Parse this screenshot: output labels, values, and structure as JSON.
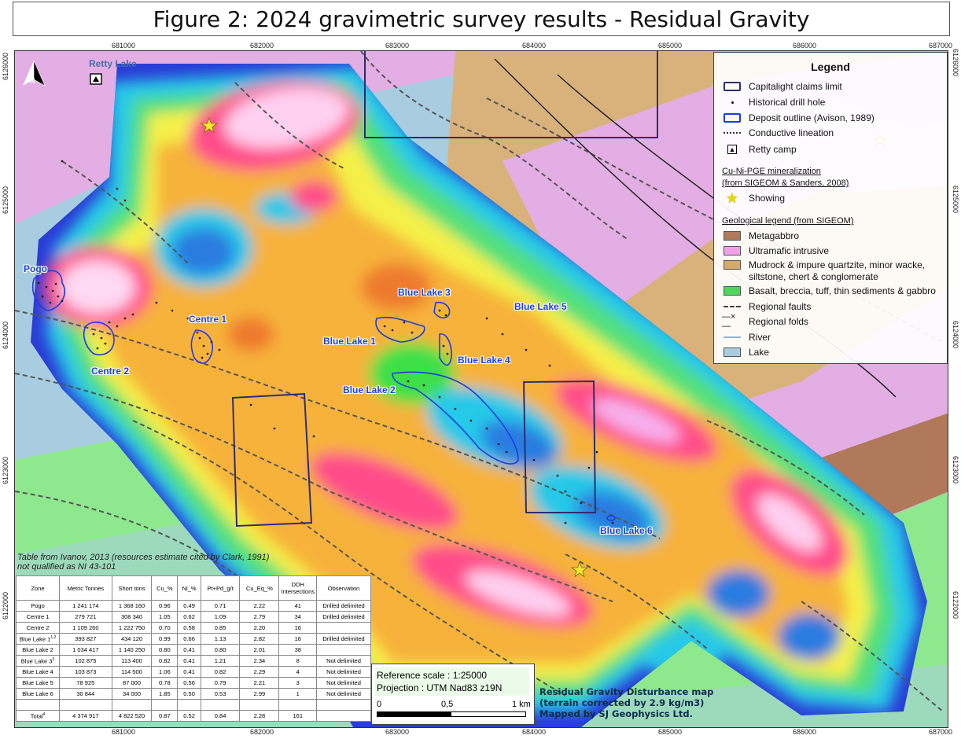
{
  "title": "Figure 2: 2024 gravimetric survey results - Residual Gravity",
  "grid": {
    "easting_ticks": [
      "681000",
      "682000",
      "683000",
      "684000",
      "685000",
      "686000",
      "687000"
    ],
    "northing_ticks": [
      "6126000",
      "6125000",
      "6124000",
      "6123000",
      "6122000"
    ]
  },
  "map_labels": {
    "retty_lake": "Retty Lake",
    "north_arrow": "N",
    "zones": {
      "pogo": "Pogo",
      "centre1": "Centre 1",
      "centre2": "Centre 2",
      "blue_lake_1": "Blue Lake 1",
      "blue_lake_2": "Blue Lake 2",
      "blue_lake_3": "Blue Lake 3",
      "blue_lake_4": "Blue Lake 4",
      "blue_lake_5": "Blue Lake 5",
      "blue_lake_6": "Blue Lake 6"
    }
  },
  "legend": {
    "title": "Legend",
    "items": {
      "claims": "Capitalight claims limit",
      "drill": "Historical drill hole",
      "deposit": "Deposit outline (Avison, 1989)",
      "conductive": "Conductive lineation",
      "camp": "Retty camp"
    },
    "mineralization_heading_1": "Cu-Ni-PGE mineralization",
    "mineralization_heading_2": "(from SIGEOM & Sanders, 2008)",
    "showing": "Showing",
    "geology_heading": "Geological legend (from SIGEOM)",
    "geology": {
      "metagabbro": "Metagabbro",
      "ultramafic": "Ultramafic intrusive",
      "mudrock_1": "Mudrock & impure quartzite, minor wacke,",
      "mudrock_2": "siltstone, chert & conglomerate",
      "basalt": "Basalt, breccia, tuff, thin sediments & gabbro",
      "faults": "Regional faults",
      "folds": "Regional folds",
      "river": "River",
      "lake": "Lake"
    },
    "colors": {
      "claims": "#2a2f6e",
      "deposit": "#1a3ce0",
      "metagabbro": "#b07a5a",
      "ultramafic": "#f2a0e6",
      "mudrock": "#d6a96a",
      "basalt": "#4fd65a",
      "river": "#8cb4d6",
      "lake": "#a8cde0",
      "showing": "#f2e534"
    }
  },
  "table_note": {
    "line1": "Table from Ivanov, 2013 (resources estimate cited by Clark, 1991)",
    "line2": "not qualified as NI 43-101"
  },
  "resources_table": {
    "headers": [
      "Zone",
      "Metric Tonnes",
      "Short tons",
      "Cu_%",
      "Ni_%",
      "Pt+Pd_g/t",
      "Cu_Eq_%",
      "DDH Intersections",
      "Observation"
    ],
    "rows": [
      [
        "Pogo",
        "1 241 174",
        "1 368 160",
        "0.96",
        "0.49",
        "0.71",
        "2.22",
        "41",
        "Drilled delimited"
      ],
      [
        "Centre 1",
        "279 721",
        "308 340",
        "1.05",
        "0.62",
        "1.09",
        "2.79",
        "34",
        "Drilled delimited"
      ],
      [
        "Centre 2",
        "1 109 260",
        "1 222 750",
        "0.70",
        "0.58",
        "0.85",
        "2.20",
        "16",
        ""
      ],
      [
        "Blue Lake 1",
        "393 827",
        "434 120",
        "0.99",
        "0.66",
        "1.13",
        "2.82",
        "16",
        "Drilled delimited"
      ],
      [
        "Blue Lake 2",
        "1 034 417",
        "1 140 250",
        "0.80",
        "0.41",
        "0.80",
        "2.01",
        "38",
        ""
      ],
      [
        "Blue Lake 3",
        "102 875",
        "113 400",
        "0.82",
        "0.41",
        "1.21",
        "2.34",
        "8",
        "Not delimited"
      ],
      [
        "Blue Lake 4",
        "103 873",
        "114 500",
        "1.06",
        "0.41",
        "0.82",
        "2.29",
        "4",
        "Not delimited"
      ],
      [
        "Blue Lake 5",
        "78 925",
        "87 000",
        "0.78",
        "0.56",
        "0.79",
        "2.21",
        "3",
        "Not delimited"
      ],
      [
        "Blue Lake 6",
        "30 844",
        "34 000",
        "1.85",
        "0.50",
        "0.53",
        "2.99",
        "1",
        "Not delimited"
      ],
      [
        "",
        "",
        "",
        "",
        "",
        "",
        "",
        "",
        ""
      ],
      [
        "Total",
        "4 374 917",
        "4 822 520",
        "0.87",
        "0.52",
        "0.84",
        "2.28",
        "161",
        ""
      ]
    ],
    "superscripts": {
      "blue_lake_1": "1,2",
      "blue_lake_3": "3",
      "total": "4"
    }
  },
  "scale": {
    "reference": "Reference scale : 1:25000",
    "projection": "Projection : UTM Nad83 z19N",
    "ticks": [
      "0",
      "0,5",
      "1 km"
    ]
  },
  "credit": {
    "line1": "Residual Gravity Disturbance map",
    "line2": "(terrain corrected by 2.9 kg/m3)",
    "line3": "Mapped by SJ Geophysics Ltd."
  }
}
